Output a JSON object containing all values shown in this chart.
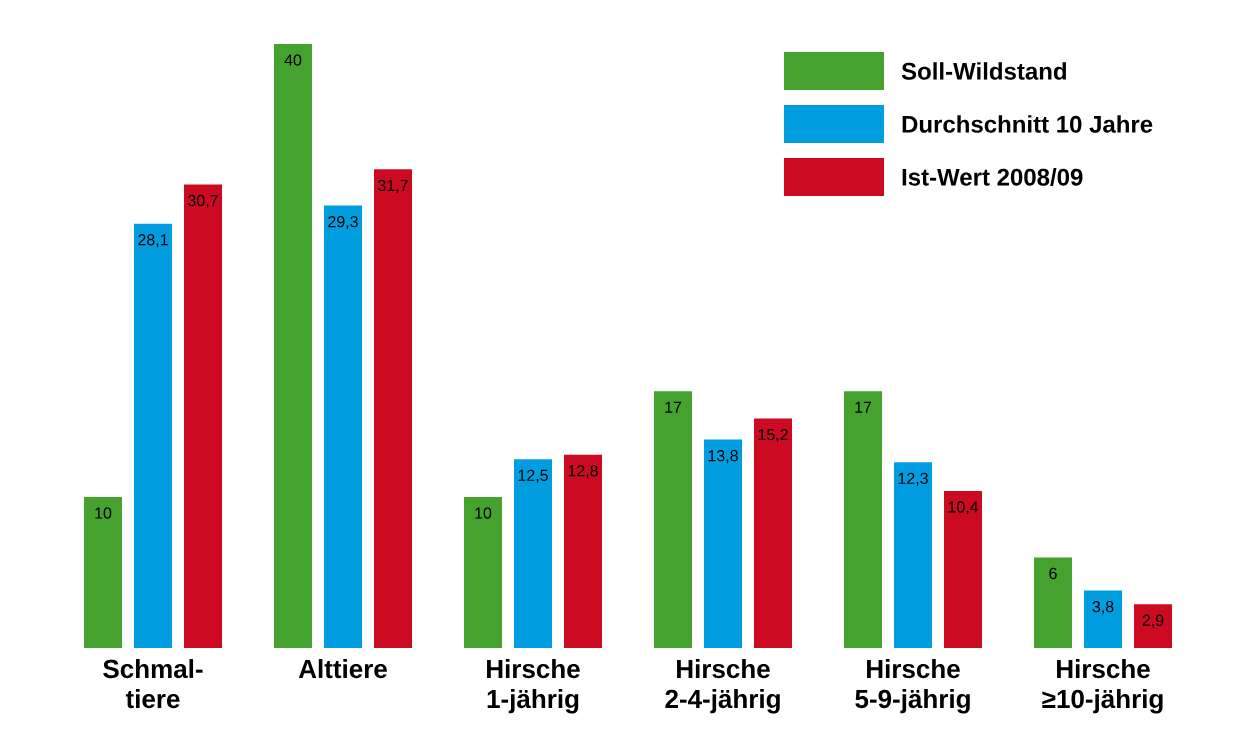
{
  "chart_data": {
    "type": "bar",
    "categories": [
      "Schmal-tiere",
      "Alttiere",
      "Hirsche 1-jährig",
      "Hirsche 2-4-jährig",
      "Hirsche 5-9-jährig",
      "Hirsche ≥10-jährig"
    ],
    "series": [
      {
        "name": "Soll-Wildstand",
        "color": "#45a22f",
        "values": [
          10,
          40,
          10,
          17,
          17,
          6
        ],
        "value_labels": [
          "10",
          "40",
          "10",
          "17",
          "17",
          "6"
        ]
      },
      {
        "name": "Durchschnitt 10 Jahre",
        "color": "#009ee0",
        "values": [
          28.1,
          29.3,
          12.5,
          13.8,
          12.3,
          3.8
        ],
        "value_labels": [
          "28,1",
          "29,3",
          "12,5",
          "13,8",
          "12,3",
          "3,8"
        ]
      },
      {
        "name": "Ist-Wert 2008/09",
        "color": "#cc0a22",
        "values": [
          30.7,
          31.7,
          12.8,
          15.2,
          10.4,
          2.9
        ],
        "value_labels": [
          "30,7",
          "31,7",
          "12,8",
          "15,2",
          "10,4",
          "2,9"
        ]
      }
    ],
    "legend": "top right"
  }
}
